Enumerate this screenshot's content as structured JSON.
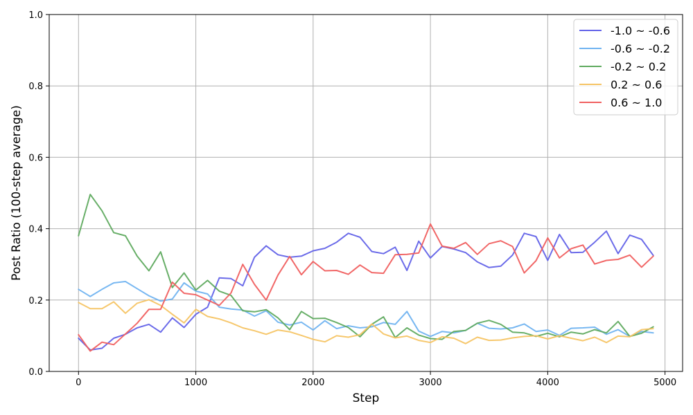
{
  "chart_data": {
    "type": "line",
    "xlabel": "Step",
    "ylabel": "Post Ratio (100-step average)",
    "xlim": [
      -250,
      5150
    ],
    "ylim": [
      0.0,
      1.0
    ],
    "x_ticks": [
      0,
      1000,
      2000,
      3000,
      4000,
      5000
    ],
    "y_ticks": [
      0.0,
      0.2,
      0.4,
      0.6,
      0.8,
      1.0
    ],
    "x_tick_labels": [
      "0",
      "1000",
      "2000",
      "3000",
      "4000",
      "5000"
    ],
    "y_tick_labels": [
      "0.0",
      "0.2",
      "0.4",
      "0.6",
      "0.8",
      "1.0"
    ],
    "grid": true,
    "legend_position": "top-right",
    "x": [
      0,
      100,
      200,
      300,
      400,
      500,
      600,
      700,
      800,
      900,
      1000,
      1100,
      1200,
      1300,
      1400,
      1500,
      1600,
      1700,
      1800,
      1900,
      2000,
      2100,
      2200,
      2300,
      2400,
      2500,
      2600,
      2700,
      2800,
      2900,
      3000,
      3100,
      3200,
      3300,
      3400,
      3500,
      3600,
      3700,
      3800,
      3900,
      4000,
      4100,
      4200,
      4300,
      4400,
      4500,
      4600,
      4700,
      4800,
      4900
    ],
    "series": [
      {
        "name": "-1.0 ~ -0.6",
        "color": "#6363e8",
        "values": [
          0.093,
          0.06,
          0.065,
          0.093,
          0.104,
          0.122,
          0.132,
          0.11,
          0.15,
          0.123,
          0.16,
          0.18,
          0.262,
          0.26,
          0.24,
          0.32,
          0.352,
          0.327,
          0.32,
          0.323,
          0.338,
          0.345,
          0.362,
          0.387,
          0.376,
          0.336,
          0.33,
          0.348,
          0.283,
          0.365,
          0.318,
          0.35,
          0.343,
          0.333,
          0.307,
          0.291,
          0.295,
          0.326,
          0.387,
          0.378,
          0.311,
          0.384,
          0.333,
          0.334,
          0.362,
          0.393,
          0.33,
          0.382,
          0.37,
          0.325
        ]
      },
      {
        "name": "-0.6 ~ -0.2",
        "color": "#70b3f0",
        "values": [
          0.23,
          0.21,
          0.23,
          0.248,
          0.252,
          0.232,
          0.212,
          0.197,
          0.203,
          0.248,
          0.225,
          0.217,
          0.18,
          0.175,
          0.172,
          0.155,
          0.17,
          0.138,
          0.13,
          0.138,
          0.116,
          0.142,
          0.12,
          0.128,
          0.122,
          0.125,
          0.137,
          0.132,
          0.168,
          0.113,
          0.098,
          0.112,
          0.108,
          0.115,
          0.135,
          0.121,
          0.119,
          0.122,
          0.133,
          0.112,
          0.116,
          0.101,
          0.121,
          0.122,
          0.124,
          0.104,
          0.117,
          0.098,
          0.112,
          0.108
        ]
      },
      {
        "name": "-0.2 ~ 0.2",
        "color": "#5faa5f",
        "values": [
          0.38,
          0.496,
          0.45,
          0.389,
          0.38,
          0.323,
          0.282,
          0.335,
          0.235,
          0.276,
          0.228,
          0.255,
          0.225,
          0.213,
          0.17,
          0.167,
          0.173,
          0.15,
          0.117,
          0.168,
          0.148,
          0.149,
          0.137,
          0.123,
          0.097,
          0.132,
          0.153,
          0.095,
          0.122,
          0.102,
          0.092,
          0.09,
          0.112,
          0.115,
          0.135,
          0.143,
          0.132,
          0.11,
          0.108,
          0.098,
          0.107,
          0.097,
          0.11,
          0.105,
          0.117,
          0.108,
          0.14,
          0.098,
          0.107,
          0.125
        ]
      },
      {
        "name": "0.2 ~ 0.6",
        "color": "#f6c464",
        "values": [
          0.193,
          0.176,
          0.176,
          0.195,
          0.163,
          0.191,
          0.201,
          0.185,
          0.16,
          0.136,
          0.174,
          0.154,
          0.147,
          0.136,
          0.122,
          0.114,
          0.104,
          0.116,
          0.111,
          0.101,
          0.09,
          0.083,
          0.1,
          0.096,
          0.103,
          0.133,
          0.105,
          0.094,
          0.099,
          0.087,
          0.081,
          0.097,
          0.093,
          0.078,
          0.096,
          0.087,
          0.088,
          0.094,
          0.098,
          0.1,
          0.091,
          0.1,
          0.093,
          0.086,
          0.096,
          0.081,
          0.099,
          0.097,
          0.117,
          0.12
        ]
      },
      {
        "name": "0.6 ~ 1.0",
        "color": "#f05f5f",
        "values": [
          0.103,
          0.057,
          0.082,
          0.075,
          0.105,
          0.135,
          0.174,
          0.174,
          0.25,
          0.219,
          0.215,
          0.2,
          0.185,
          0.22,
          0.3,
          0.244,
          0.2,
          0.27,
          0.322,
          0.271,
          0.308,
          0.282,
          0.283,
          0.272,
          0.298,
          0.277,
          0.275,
          0.327,
          0.328,
          0.332,
          0.413,
          0.351,
          0.345,
          0.361,
          0.328,
          0.358,
          0.366,
          0.35,
          0.276,
          0.31,
          0.374,
          0.318,
          0.344,
          0.354,
          0.301,
          0.311,
          0.314,
          0.326,
          0.292,
          0.323
        ]
      }
    ]
  }
}
